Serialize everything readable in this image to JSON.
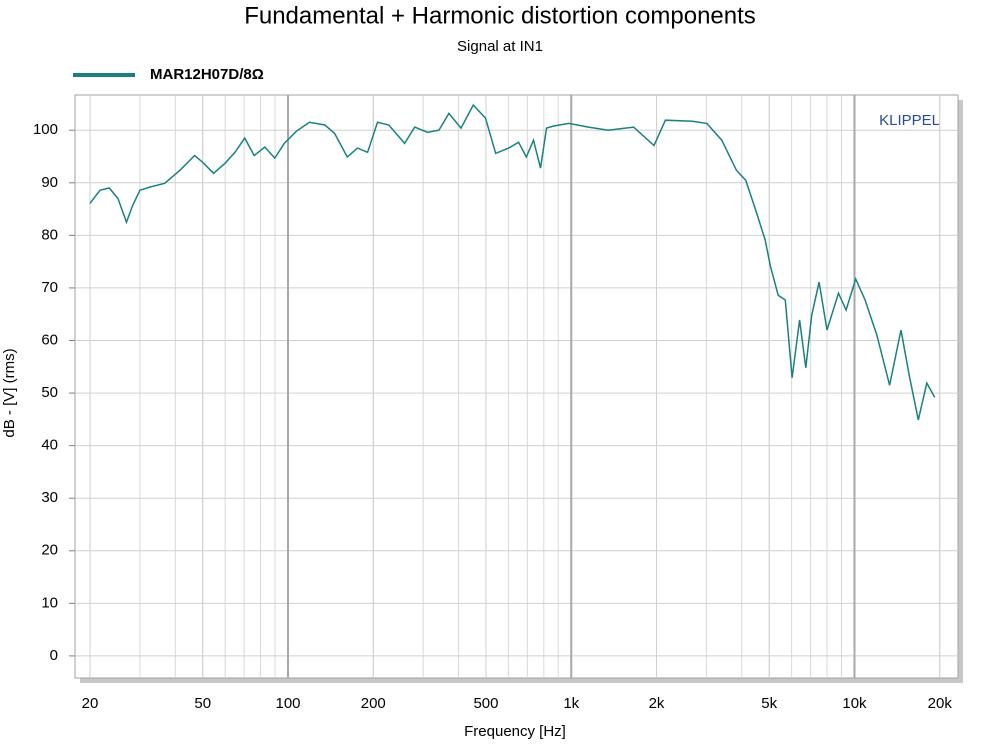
{
  "chart_data": {
    "type": "line",
    "title": "Fundamental + Harmonic distortion components",
    "subtitle": "Signal at IN1",
    "xlabel": "Frequency [Hz]",
    "ylabel": "dB - [V]  (rms)",
    "watermark": "KLIPPEL",
    "xscale": "log",
    "grid": true,
    "xlim": [
      17.7,
      23200
    ],
    "ylim": [
      -4.2,
      106.7
    ],
    "xticks": [
      20,
      50,
      100,
      200,
      500,
      {
        "value": 1000,
        "label": "1k"
      },
      {
        "value": 2000,
        "label": "2k"
      },
      {
        "value": 5000,
        "label": "5k"
      },
      {
        "value": 10000,
        "label": "10k"
      },
      {
        "value": 20000,
        "label": "20k"
      }
    ],
    "x_minor_grid": [
      20,
      30,
      40,
      50,
      60,
      70,
      80,
      90,
      200,
      300,
      400,
      500,
      600,
      700,
      800,
      900,
      2000,
      3000,
      4000,
      5000,
      6000,
      7000,
      8000,
      9000,
      20000
    ],
    "yticks": [
      0,
      10,
      20,
      30,
      40,
      50,
      60,
      70,
      80,
      90,
      100
    ],
    "x": [
      20,
      21.7,
      23.4,
      25.1,
      26.9,
      28.3,
      30,
      32.6,
      36.7,
      41.6,
      46.8,
      50,
      54.6,
      59.9,
      65,
      70.3,
      76,
      82.8,
      89.8,
      97,
      107,
      119,
      135,
      146,
      162,
      176,
      191,
      207,
      227,
      258,
      280,
      311,
      341,
      370,
      408,
      451,
      498,
      541,
      601,
      652,
      694,
      736,
      779,
      818,
      867,
      980,
      1150,
      1350,
      1660,
      1960,
      2150,
      2680,
      3010,
      3400,
      3830,
      4130,
      4480,
      4840,
      5040,
      5380,
      5700,
      6020,
      6400,
      6730,
      7060,
      7500,
      8000,
      8780,
      9340,
      10100,
      10900,
      12000,
      13300,
      14600,
      15600,
      16800,
      18000,
      19200
    ],
    "series": [
      {
        "name": "MAR12H07D/8Ω",
        "color": "#1a8080",
        "values": [
          86.1,
          88.6,
          89,
          87,
          82.5,
          85.7,
          88.6,
          89.2,
          89.9,
          92.4,
          95.2,
          93.9,
          91.8,
          93.7,
          95.8,
          98.5,
          95.2,
          96.8,
          94.7,
          97.5,
          99.8,
          101.5,
          101,
          99.4,
          94.9,
          96.6,
          95.8,
          101.5,
          101,
          97.5,
          100.6,
          99.6,
          100,
          103.2,
          100.4,
          104.8,
          102.3,
          95.6,
          96.6,
          97.7,
          94.9,
          98.1,
          92.8,
          100.4,
          100.8,
          101.3,
          100.6,
          100,
          100.6,
          97.1,
          101.9,
          101.7,
          101.3,
          98.1,
          92.4,
          90.5,
          84.8,
          79.1,
          74.3,
          68.6,
          67.7,
          52.9,
          63.9,
          54.8,
          64.8,
          71.1,
          62,
          69,
          65.8,
          71.7,
          67.7,
          61,
          51.5,
          62,
          53.4,
          44.9,
          51.9,
          49.2
        ]
      }
    ]
  }
}
